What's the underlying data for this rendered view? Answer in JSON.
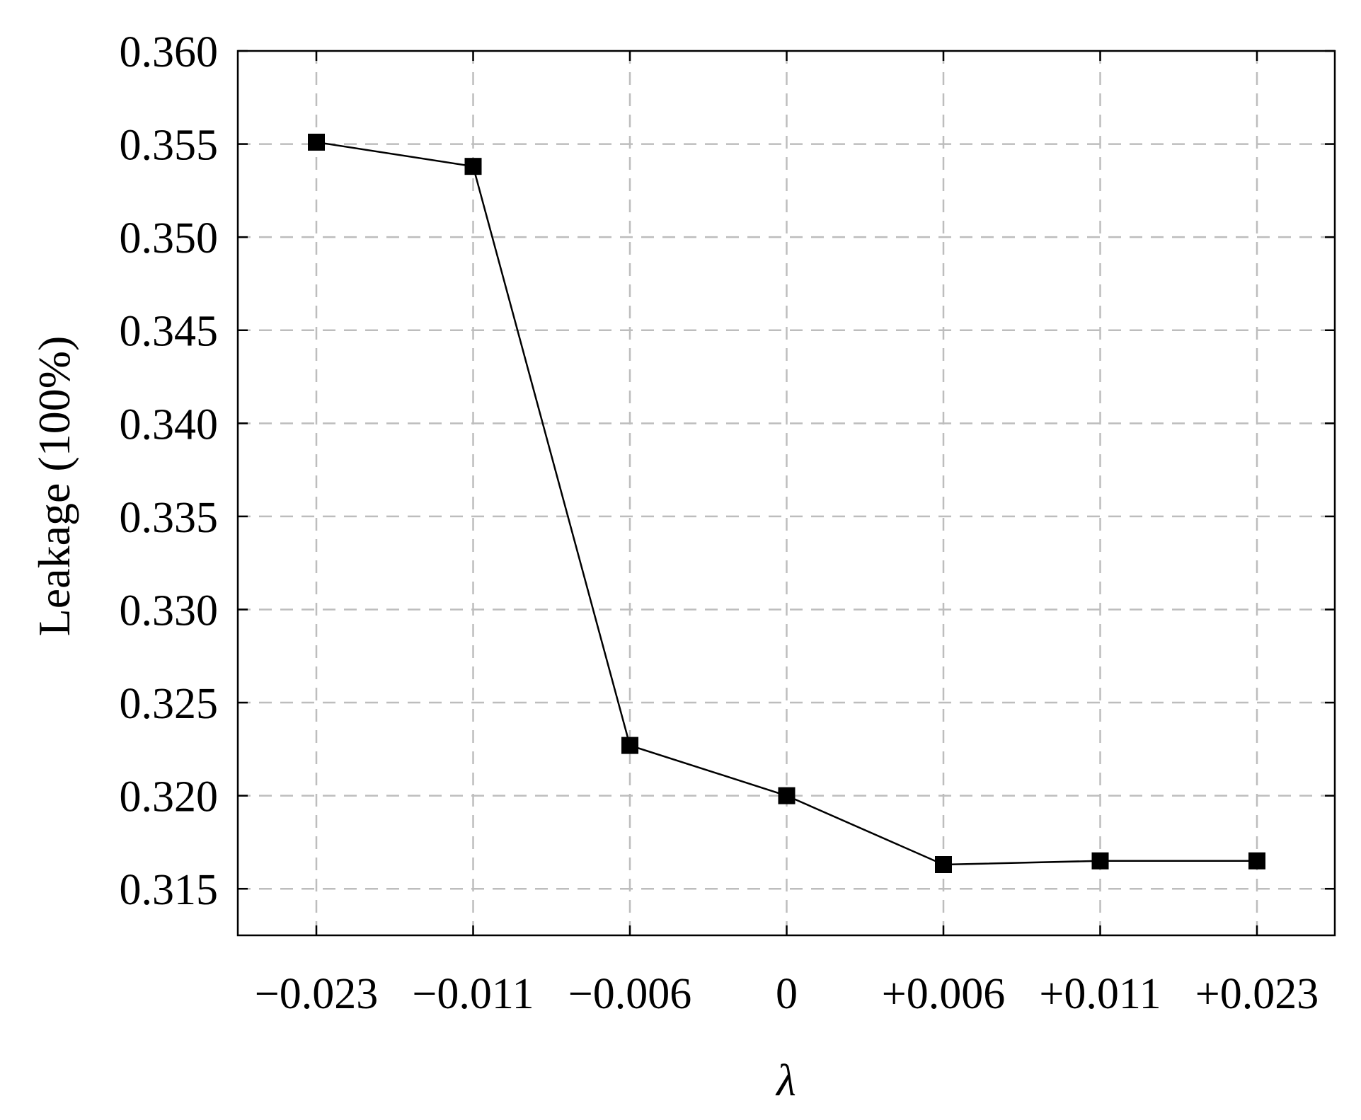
{
  "chart_data": {
    "type": "line",
    "title": "",
    "xlabel": "λ",
    "ylabel": "Leakage (100%)",
    "categories": [
      "−0.023",
      "−0.011",
      "−0.006",
      "0",
      "+0.006",
      "+0.011",
      "+0.023"
    ],
    "series": [
      {
        "values": [
          0.3551,
          0.3538,
          0.3227,
          0.32,
          0.3163,
          0.3165,
          0.3165
        ]
      }
    ],
    "ylim": [
      0.3125,
      0.36
    ],
    "yticks": [
      0.315,
      0.32,
      0.325,
      0.33,
      0.335,
      0.34,
      0.345,
      0.35,
      0.355,
      0.36
    ],
    "ytick_labels": [
      "0.315",
      "0.320",
      "0.325",
      "0.330",
      "0.335",
      "0.340",
      "0.345",
      "0.350",
      "0.355",
      "0.360"
    ],
    "grid": true,
    "legend": "none",
    "marker": "square",
    "colors": {
      "line": "#000000",
      "marker": "#000000",
      "grid": "#bdbdbd",
      "axis": "#000000"
    }
  }
}
